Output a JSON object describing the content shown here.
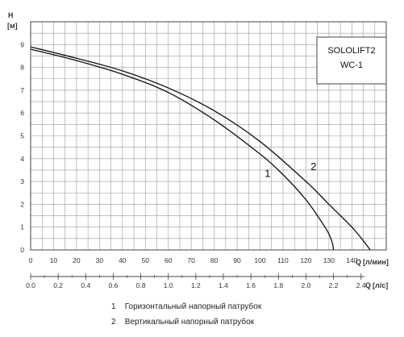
{
  "chart_data": {
    "type": "line",
    "title_box": [
      "SOLOLIFT2",
      "WC-1"
    ],
    "y_axis": {
      "label": "H",
      "unit": "[м]",
      "ticks": [
        0,
        1,
        2,
        3,
        4,
        5,
        6,
        7,
        8,
        9
      ],
      "ylim": [
        0,
        10
      ]
    },
    "x_axis_primary": {
      "label": "Q",
      "unit": "[л/мин]",
      "ticks": [
        0,
        10,
        20,
        30,
        40,
        50,
        60,
        70,
        80,
        90,
        100,
        110,
        120,
        130,
        140
      ],
      "xlim": [
        0,
        155
      ]
    },
    "x_axis_secondary": {
      "label": "Q",
      "unit": "[л/с]",
      "ticks": [
        "0.0",
        "0.2",
        "0.4",
        "0.6",
        "0.8",
        "1.0",
        "1.2",
        "1.4",
        "1.6",
        "1.8",
        "2.0",
        "2.2",
        "2.4"
      ]
    },
    "grid": true,
    "series": [
      {
        "name": "1",
        "x": [
          0,
          20,
          40,
          60,
          80,
          100,
          110,
          120,
          127,
          130,
          131.5,
          132
        ],
        "y": [
          8.8,
          8.3,
          7.7,
          6.9,
          5.7,
          4.2,
          3.3,
          2.2,
          1.2,
          0.7,
          0.3,
          0
        ]
      },
      {
        "name": "2",
        "x": [
          0,
          20,
          40,
          60,
          80,
          100,
          120,
          130,
          140,
          145,
          148
        ],
        "y": [
          8.9,
          8.4,
          7.85,
          7.1,
          6.1,
          4.75,
          3.0,
          2.0,
          1.0,
          0.4,
          0
        ]
      }
    ],
    "curve_labels": [
      {
        "text": "1",
        "x": 102,
        "y": 3.2
      },
      {
        "text": "2",
        "x": 122,
        "y": 3.5
      }
    ]
  },
  "legend": [
    {
      "num": "1",
      "text": "Горизонтальный напорный патрубок"
    },
    {
      "num": "2",
      "text": "Вертикальный напорный патрубок"
    }
  ]
}
